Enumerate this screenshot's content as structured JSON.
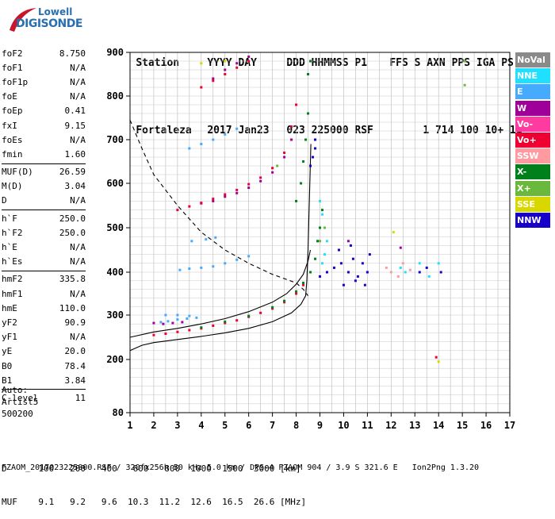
{
  "logo": {
    "line1": "Lowell",
    "line2": "DIGISONDE"
  },
  "header": {
    "labels": [
      "Station",
      "YYYY DAY",
      "DDD HHMMSS P1",
      "FFS S AXN PPS IGA PS"
    ],
    "values": [
      "Fortaleza",
      "2017 Jan23",
      "023 225000 RSF",
      "1 714 100 10+ 11"
    ]
  },
  "params_groups": [
    [
      [
        "foF2",
        "8.750"
      ],
      [
        "foF1",
        "N/A"
      ],
      [
        "foF1p",
        "N/A"
      ],
      [
        "foE",
        "N/A"
      ],
      [
        "foEp",
        "0.41"
      ],
      [
        "fxI",
        "9.15"
      ],
      [
        "foEs",
        "N/A"
      ],
      [
        "fmin",
        "1.60"
      ]
    ],
    [
      [
        "MUF(D)",
        "26.59"
      ],
      [
        "M(D)",
        "3.04"
      ],
      [
        "D",
        "N/A"
      ]
    ],
    [
      [
        "h`F",
        "250.0"
      ],
      [
        "h`F2",
        "250.0"
      ],
      [
        "h`E",
        "N/A"
      ],
      [
        "h`Es",
        "N/A"
      ]
    ],
    [
      [
        "hmF2",
        "335.8"
      ],
      [
        "hmF1",
        "N/A"
      ],
      [
        "hmE",
        "110.0"
      ],
      [
        "yF2",
        "90.9"
      ],
      [
        "yF1",
        "N/A"
      ],
      [
        "yE",
        "20.0"
      ],
      [
        "B0",
        "78.4"
      ],
      [
        "B1",
        "3.84"
      ]
    ],
    [
      [
        "C-level",
        "11"
      ]
    ]
  ],
  "auto": [
    "Auto:",
    "Artist5",
    "500200"
  ],
  "legend": [
    {
      "label": "NoVal",
      "color": "#8a8a8a"
    },
    {
      "label": "NNE",
      "color": "#1fe0ff"
    },
    {
      "label": "E",
      "color": "#46aaff"
    },
    {
      "label": "W",
      "color": "#a0009a"
    },
    {
      "label": "Vo-",
      "color": "#ff3aa0"
    },
    {
      "label": "Vo+",
      "color": "#ee0033"
    },
    {
      "label": "SSW",
      "color": "#ff9aa0"
    },
    {
      "label": "X-",
      "color": "#00801a"
    },
    {
      "label": "X+",
      "color": "#6ab83c"
    },
    {
      "label": "SSE",
      "color": "#d8d800"
    },
    {
      "label": "NNW",
      "color": "#1800c8"
    }
  ],
  "muf_table": {
    "d_label": "D",
    "d_values": [
      "100",
      "200",
      "400",
      "600",
      "800",
      "1000",
      "1500",
      "3000"
    ],
    "d_unit": "[km]",
    "muf_label": "MUF",
    "muf_values": [
      "9.1",
      "9.2",
      "9.6",
      "10.3",
      "11.2",
      "12.6",
      "16.5",
      "26.6"
    ],
    "muf_unit": "[MHz]"
  },
  "footer": "FZAOM_2017023225000.RSF / 320fx256h 50 kHz 5.0 km / DPS-4 FZAOM 904 / 3.9 S 321.6 E   Ion2Png 1.3.20",
  "chart_data": {
    "type": "scatter",
    "xlim": [
      1,
      17
    ],
    "ylim": [
      80,
      900
    ],
    "x_ticks": [
      "1",
      "2",
      "3",
      "4",
      "5",
      "6",
      "7",
      "8",
      "9",
      "10",
      "11",
      "12",
      "13",
      "14",
      "15",
      "16",
      "17"
    ],
    "y_ticks": [
      "80",
      "200",
      "300",
      "400",
      "500",
      "600",
      "700",
      "800",
      "900"
    ],
    "grid": true,
    "profile_curve": [
      [
        1.0,
        220
      ],
      [
        1.5,
        232
      ],
      [
        2,
        238
      ],
      [
        3,
        245
      ],
      [
        4,
        252
      ],
      [
        5,
        260
      ],
      [
        6,
        270
      ],
      [
        7,
        285
      ],
      [
        7.8,
        305
      ],
      [
        8.2,
        325
      ],
      [
        8.4,
        345
      ],
      [
        8.45,
        380
      ],
      [
        8.5,
        450
      ],
      [
        8.55,
        550
      ],
      [
        8.6,
        650
      ],
      [
        8.62,
        690
      ]
    ],
    "virtual_trace_curve": [
      [
        1.0,
        250
      ],
      [
        2,
        262
      ],
      [
        3,
        270
      ],
      [
        4,
        280
      ],
      [
        5,
        292
      ],
      [
        6,
        308
      ],
      [
        7,
        330
      ],
      [
        7.6,
        350
      ],
      [
        8.0,
        372
      ],
      [
        8.3,
        395
      ],
      [
        8.5,
        425
      ],
      [
        8.6,
        450
      ]
    ],
    "dashed_curve": [
      [
        1.0,
        745
      ],
      [
        1.5,
        680
      ],
      [
        2,
        620
      ],
      [
        3,
        550
      ],
      [
        4,
        490
      ],
      [
        5,
        450
      ],
      [
        6,
        420
      ],
      [
        7,
        395
      ],
      [
        7.5,
        385
      ],
      [
        8,
        375
      ],
      [
        8.3,
        360
      ],
      [
        8.5,
        345
      ]
    ],
    "traces": [
      {
        "name": "E",
        "color": "#46aaff",
        "points": [
          [
            2.3,
            284
          ],
          [
            2.6,
            286
          ],
          [
            3.0,
            290
          ],
          [
            3.4,
            292
          ],
          [
            3.8,
            294
          ],
          [
            2.5,
            300
          ],
          [
            3.0,
            300
          ],
          [
            3.5,
            298
          ],
          [
            3.1,
            405
          ],
          [
            3.5,
            408
          ],
          [
            4.0,
            410
          ],
          [
            4.5,
            413
          ],
          [
            5.0,
            420
          ],
          [
            5.5,
            428
          ],
          [
            6.0,
            436
          ],
          [
            3.6,
            470
          ],
          [
            4.2,
            474
          ],
          [
            4.6,
            478
          ],
          [
            3.5,
            680
          ],
          [
            4.0,
            690
          ],
          [
            4.5,
            700
          ],
          [
            5.0,
            712
          ],
          [
            5.5,
            725
          ]
        ]
      },
      {
        "name": "W",
        "color": "#a0009a",
        "points": [
          [
            2.0,
            282
          ],
          [
            2.4,
            280
          ],
          [
            2.8,
            282
          ],
          [
            3.2,
            284
          ],
          [
            4.0,
            555
          ],
          [
            4.5,
            560
          ],
          [
            5.0,
            570
          ],
          [
            5.5,
            578
          ],
          [
            6.0,
            590
          ],
          [
            6.5,
            605
          ],
          [
            7.0,
            625
          ],
          [
            7.5,
            660
          ],
          [
            7.8,
            700
          ],
          [
            4.5,
            840
          ],
          [
            5.0,
            860
          ],
          [
            5.5,
            875
          ],
          [
            6.0,
            890
          ],
          [
            12.4,
            455
          ],
          [
            10.2,
            470
          ]
        ]
      },
      {
        "name": "Vo+",
        "color": "#ee0033",
        "points": [
          [
            2.0,
            255
          ],
          [
            2.5,
            258
          ],
          [
            3.0,
            262
          ],
          [
            3.5,
            266
          ],
          [
            4.0,
            270
          ],
          [
            4.5,
            276
          ],
          [
            5.0,
            282
          ],
          [
            5.5,
            288
          ],
          [
            6.0,
            296
          ],
          [
            6.5,
            305
          ],
          [
            7.0,
            315
          ],
          [
            7.5,
            330
          ],
          [
            8.0,
            350
          ],
          [
            8.3,
            370
          ],
          [
            3.0,
            540
          ],
          [
            3.5,
            548
          ],
          [
            4.0,
            556
          ],
          [
            4.5,
            565
          ],
          [
            5.0,
            575
          ],
          [
            5.5,
            585
          ],
          [
            6.0,
            598
          ],
          [
            6.5,
            613
          ],
          [
            7.0,
            635
          ],
          [
            7.5,
            670
          ],
          [
            7.8,
            730
          ],
          [
            8.0,
            780
          ],
          [
            4.0,
            820
          ],
          [
            4.5,
            835
          ],
          [
            5.0,
            850
          ],
          [
            5.5,
            865
          ],
          [
            6.0,
            880
          ],
          [
            13.9,
            205
          ]
        ]
      },
      {
        "name": "X-",
        "color": "#00801a",
        "points": [
          [
            4.0,
            272
          ],
          [
            5.0,
            285
          ],
          [
            6.0,
            298
          ],
          [
            7.0,
            318
          ],
          [
            7.5,
            333
          ],
          [
            8.0,
            355
          ],
          [
            8.3,
            375
          ],
          [
            8.6,
            400
          ],
          [
            8.8,
            430
          ],
          [
            8.9,
            470
          ],
          [
            9.0,
            500
          ],
          [
            9.1,
            540
          ],
          [
            8.0,
            560
          ],
          [
            8.2,
            600
          ],
          [
            8.3,
            650
          ],
          [
            8.4,
            700
          ],
          [
            8.5,
            760
          ],
          [
            8.5,
            850
          ],
          [
            8.6,
            880
          ]
        ]
      },
      {
        "name": "NNW",
        "color": "#1800c8",
        "points": [
          [
            9.0,
            390
          ],
          [
            9.3,
            400
          ],
          [
            9.6,
            410
          ],
          [
            9.9,
            420
          ],
          [
            10.2,
            400
          ],
          [
            10.4,
            430
          ],
          [
            10.6,
            390
          ],
          [
            10.8,
            420
          ],
          [
            11.0,
            400
          ],
          [
            11.1,
            440
          ],
          [
            10.0,
            370
          ],
          [
            10.5,
            380
          ],
          [
            10.9,
            370
          ],
          [
            9.8,
            450
          ],
          [
            10.3,
            460
          ],
          [
            13.2,
            400
          ],
          [
            13.5,
            410
          ],
          [
            14.1,
            400
          ],
          [
            8.6,
            640
          ],
          [
            8.7,
            660
          ],
          [
            8.8,
            680
          ],
          [
            8.8,
            700
          ]
        ]
      },
      {
        "name": "NNE",
        "color": "#1fe0ff",
        "points": [
          [
            9.0,
            560
          ],
          [
            9.1,
            530
          ],
          [
            9.2,
            500
          ],
          [
            9.3,
            470
          ],
          [
            9.2,
            440
          ],
          [
            9.1,
            420
          ],
          [
            12.4,
            410
          ],
          [
            12.6,
            400
          ],
          [
            13.2,
            420
          ],
          [
            13.6,
            390
          ],
          [
            14.0,
            420
          ]
        ]
      },
      {
        "name": "SSW",
        "color": "#ff9aa0",
        "points": [
          [
            12.0,
            400
          ],
          [
            12.3,
            390
          ],
          [
            12.8,
            405
          ],
          [
            12.5,
            420
          ],
          [
            11.8,
            410
          ]
        ]
      },
      {
        "name": "SSE",
        "color": "#d8d800",
        "points": [
          [
            5.0,
            880
          ],
          [
            4.0,
            875
          ],
          [
            12.1,
            490
          ],
          [
            14.0,
            195
          ]
        ]
      },
      {
        "name": "X+",
        "color": "#6ab83c",
        "points": [
          [
            15.1,
            880
          ],
          [
            15.1,
            825
          ],
          [
            9.2,
            500
          ],
          [
            9.0,
            470
          ],
          [
            7.2,
            640
          ]
        ]
      }
    ]
  }
}
